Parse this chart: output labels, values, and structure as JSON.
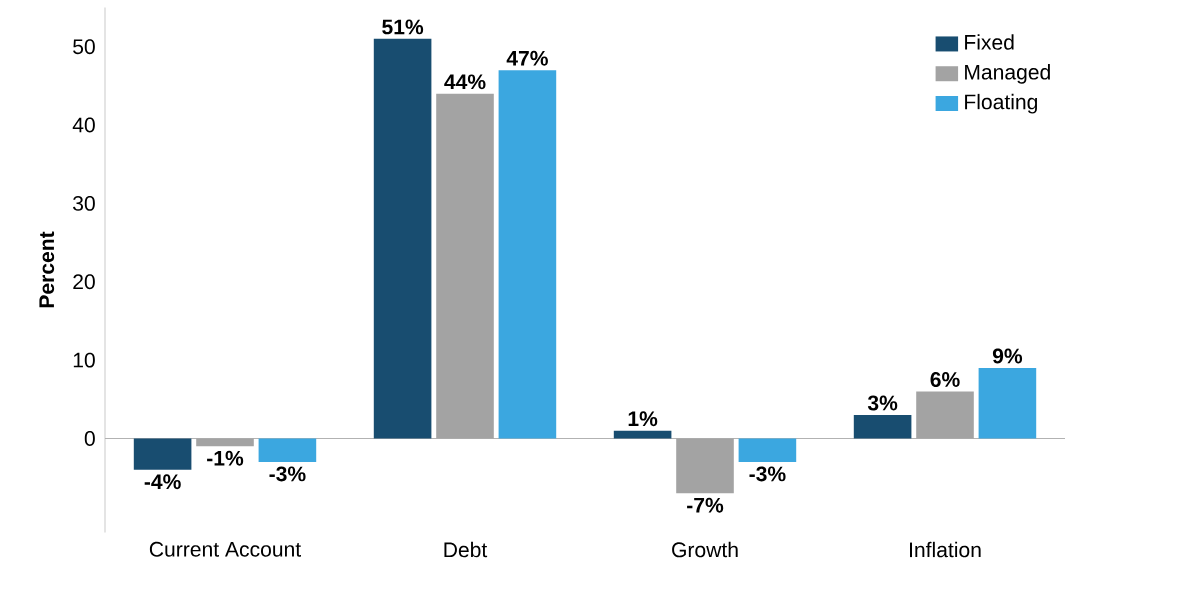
{
  "chart_data": {
    "type": "bar",
    "ylabel": "Percent",
    "categories": [
      "Current Account",
      "Debt",
      "Growth",
      "Inflation"
    ],
    "series": [
      {
        "name": "Fixed",
        "color": "#184d70",
        "values": [
          -4,
          51,
          1,
          3
        ],
        "value_labels": [
          "-4%",
          "51%",
          "1%",
          "3%"
        ]
      },
      {
        "name": "Managed",
        "color": "#a3a3a3",
        "values": [
          -1,
          44,
          -7,
          6
        ],
        "value_labels": [
          "-1%",
          "44%",
          "-7%",
          "6%"
        ]
      },
      {
        "name": "Floating",
        "color": "#3ba7e0",
        "values": [
          -3,
          47,
          -3,
          9
        ],
        "value_labels": [
          "-3%",
          "47%",
          "-3%",
          "9%"
        ]
      }
    ],
    "ylim": [
      -12,
      55
    ],
    "yticks": [
      0,
      10,
      20,
      30,
      40,
      50
    ],
    "legend": "top right"
  }
}
